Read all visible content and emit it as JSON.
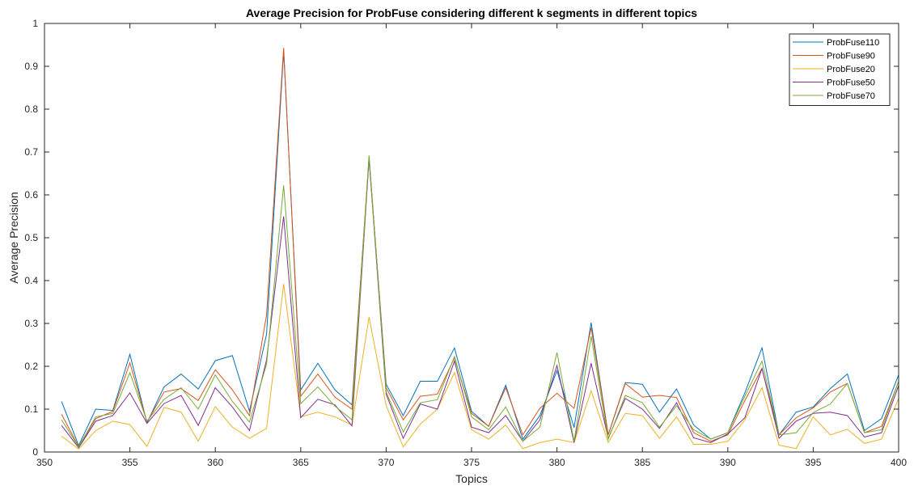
{
  "chart_data": {
    "type": "line",
    "title": "Average Precision for ProbFuse considering different k segments in different topics",
    "xlabel": "Topics",
    "ylabel": "Average Precision",
    "xlim": [
      350,
      400
    ],
    "ylim": [
      0,
      1
    ],
    "xticks": [
      350,
      355,
      360,
      365,
      370,
      375,
      380,
      385,
      390,
      395,
      400
    ],
    "yticks": [
      0,
      0.1,
      0.2,
      0.3,
      0.4,
      0.5,
      0.6,
      0.7,
      0.8,
      0.9,
      1
    ],
    "xtick_labels": [
      "350",
      "355",
      "360",
      "365",
      "370",
      "375",
      "380",
      "385",
      "390",
      "395",
      "400"
    ],
    "ytick_labels": [
      "0",
      "0.1",
      "0.2",
      "0.3",
      "0.4",
      "0.5",
      "0.6",
      "0.7",
      "0.8",
      "0.9",
      "1"
    ],
    "grid": false,
    "legend_position": "top-right",
    "x": [
      351,
      352,
      353,
      354,
      355,
      356,
      357,
      358,
      359,
      360,
      361,
      362,
      363,
      364,
      365,
      366,
      367,
      368,
      369,
      370,
      371,
      372,
      373,
      374,
      375,
      376,
      377,
      378,
      379,
      380,
      381,
      382,
      383,
      384,
      385,
      386,
      387,
      388,
      389,
      390,
      391,
      392,
      393,
      394,
      395,
      396,
      397,
      398,
      399,
      400
    ],
    "series": [
      {
        "name": "ProbFuse110",
        "color": "#0072BD",
        "values": [
          0.118,
          0.015,
          0.1,
          0.097,
          0.228,
          0.068,
          0.152,
          0.182,
          0.147,
          0.213,
          0.225,
          0.095,
          0.275,
          0.935,
          0.145,
          0.207,
          0.145,
          0.11,
          0.685,
          0.158,
          0.085,
          0.165,
          0.165,
          0.243,
          0.095,
          0.06,
          0.156,
          0.03,
          0.085,
          0.19,
          0.057,
          0.302,
          0.04,
          0.162,
          0.158,
          0.093,
          0.147,
          0.063,
          0.03,
          0.045,
          0.138,
          0.243,
          0.04,
          0.093,
          0.105,
          0.148,
          0.182,
          0.05,
          0.078,
          0.18
        ]
      },
      {
        "name": "ProbFuse90",
        "color": "#D95319",
        "values": [
          0.088,
          0.012,
          0.078,
          0.095,
          0.208,
          0.07,
          0.14,
          0.148,
          0.12,
          0.192,
          0.145,
          0.085,
          0.32,
          0.943,
          0.13,
          0.182,
          0.128,
          0.1,
          0.69,
          0.15,
          0.075,
          0.13,
          0.135,
          0.22,
          0.09,
          0.06,
          0.15,
          0.04,
          0.102,
          0.137,
          0.102,
          0.29,
          0.04,
          0.16,
          0.128,
          0.132,
          0.127,
          0.045,
          0.025,
          0.04,
          0.12,
          0.195,
          0.04,
          0.08,
          0.103,
          0.14,
          0.16,
          0.045,
          0.06,
          0.165
        ]
      },
      {
        "name": "ProbFuse20",
        "color": "#EDB120",
        "values": [
          0.037,
          0.007,
          0.05,
          0.072,
          0.064,
          0.013,
          0.104,
          0.093,
          0.025,
          0.106,
          0.058,
          0.032,
          0.055,
          0.392,
          0.082,
          0.093,
          0.082,
          0.063,
          0.315,
          0.108,
          0.012,
          0.065,
          0.1,
          0.185,
          0.052,
          0.03,
          0.063,
          0.008,
          0.022,
          0.03,
          0.022,
          0.143,
          0.022,
          0.09,
          0.085,
          0.032,
          0.082,
          0.018,
          0.018,
          0.025,
          0.075,
          0.15,
          0.016,
          0.008,
          0.082,
          0.04,
          0.053,
          0.02,
          0.03,
          0.125
        ]
      },
      {
        "name": "ProbFuse50",
        "color": "#7E2F8E",
        "values": [
          0.062,
          0.01,
          0.072,
          0.085,
          0.138,
          0.067,
          0.113,
          0.132,
          0.062,
          0.15,
          0.105,
          0.05,
          0.215,
          0.55,
          0.08,
          0.123,
          0.11,
          0.061,
          0.685,
          0.135,
          0.032,
          0.112,
          0.1,
          0.212,
          0.058,
          0.045,
          0.085,
          0.025,
          0.075,
          0.202,
          0.022,
          0.207,
          0.032,
          0.125,
          0.1,
          0.055,
          0.115,
          0.033,
          0.022,
          0.042,
          0.08,
          0.195,
          0.032,
          0.072,
          0.09,
          0.093,
          0.085,
          0.035,
          0.045,
          0.155
        ]
      },
      {
        "name": "ProbFuse70",
        "color": "#77AC30",
        "values": [
          0.075,
          0.012,
          0.082,
          0.09,
          0.185,
          0.072,
          0.123,
          0.15,
          0.1,
          0.18,
          0.118,
          0.07,
          0.205,
          0.622,
          0.113,
          0.152,
          0.107,
          0.075,
          0.692,
          0.14,
          0.047,
          0.115,
          0.122,
          0.223,
          0.082,
          0.052,
          0.105,
          0.025,
          0.058,
          0.232,
          0.025,
          0.27,
          0.03,
          0.132,
          0.115,
          0.058,
          0.108,
          0.052,
          0.03,
          0.045,
          0.13,
          0.212,
          0.04,
          0.045,
          0.092,
          0.112,
          0.16,
          0.045,
          0.052,
          0.165
        ]
      }
    ]
  }
}
